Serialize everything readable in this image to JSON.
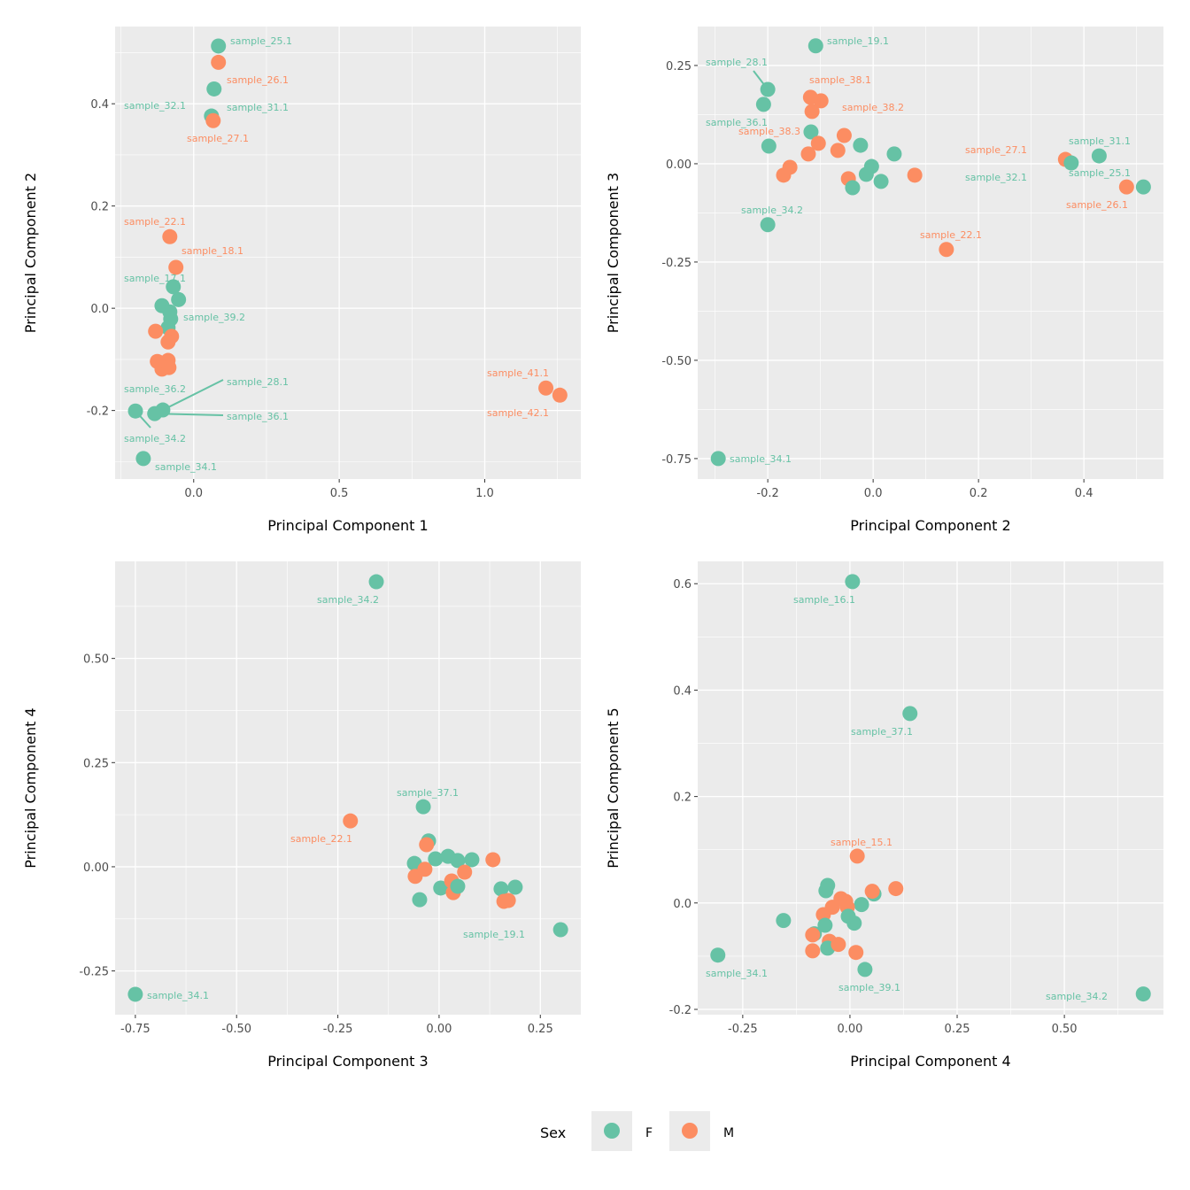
{
  "chart_data": [
    {
      "type": "scatter",
      "xlabel": "Principal Component 1",
      "ylabel": "Principal Component 2",
      "xlim": [
        -0.27,
        1.33
      ],
      "ylim": [
        -0.334,
        0.551
      ],
      "xticks": [
        0,
        0.5,
        1.0
      ],
      "xtick_labels": [
        "0.0",
        "0.5",
        "1.0"
      ],
      "yticks": [
        -0.2,
        0,
        0.2,
        0.4
      ],
      "ytick_labels": [
        "-0.2",
        "0.0",
        "0.2",
        "0.4"
      ],
      "points": [
        {
          "x": 0.085,
          "y": 0.513,
          "sex": "F",
          "label": "sample_25.1"
        },
        {
          "x": 0.085,
          "y": 0.481,
          "sex": "M",
          "label": "sample_26.1"
        },
        {
          "x": 0.07,
          "y": 0.429,
          "sex": "F",
          "label": "sample_31.1"
        },
        {
          "x": 0.061,
          "y": 0.376,
          "sex": "F",
          "label": "sample_32.1"
        },
        {
          "x": 0.067,
          "y": 0.367,
          "sex": "M",
          "label": "sample_27.1"
        },
        {
          "x": -0.082,
          "y": 0.14,
          "sex": "M",
          "label": "sample_22.1"
        },
        {
          "x": -0.061,
          "y": 0.08,
          "sex": "M",
          "label": "sample_18.1"
        },
        {
          "x": -0.07,
          "y": 0.042,
          "sex": "F",
          "label": "sample_17.1"
        },
        {
          "x": -0.052,
          "y": 0.017,
          "sex": "F"
        },
        {
          "x": -0.109,
          "y": 0.005,
          "sex": "F"
        },
        {
          "x": -0.082,
          "y": -0.007,
          "sex": "F"
        },
        {
          "x": -0.079,
          "y": -0.021,
          "sex": "F",
          "label": "sample_39.2"
        },
        {
          "x": -0.088,
          "y": -0.038,
          "sex": "F"
        },
        {
          "x": -0.131,
          "y": -0.045,
          "sex": "M"
        },
        {
          "x": -0.076,
          "y": -0.055,
          "sex": "M"
        },
        {
          "x": -0.088,
          "y": -0.066,
          "sex": "M"
        },
        {
          "x": -0.109,
          "y": -0.111,
          "sex": "F",
          "label": "sample_36.2"
        },
        {
          "x": -0.088,
          "y": -0.102,
          "sex": "M"
        },
        {
          "x": -0.125,
          "y": -0.104,
          "sex": "M"
        },
        {
          "x": -0.109,
          "y": -0.119,
          "sex": "M"
        },
        {
          "x": -0.085,
          "y": -0.116,
          "sex": "M"
        },
        {
          "x": -0.2,
          "y": -0.201,
          "sex": "F",
          "label": "sample_34.2"
        },
        {
          "x": -0.134,
          "y": -0.206,
          "sex": "F",
          "label": "sample_36.1"
        },
        {
          "x": -0.106,
          "y": -0.199,
          "sex": "F",
          "label": "sample_28.1"
        },
        {
          "x": -0.173,
          "y": -0.294,
          "sex": "F",
          "label": "sample_34.1"
        },
        {
          "x": 1.21,
          "y": -0.156,
          "sex": "M",
          "label": "sample_41.1"
        },
        {
          "x": 1.258,
          "y": -0.17,
          "sex": "M",
          "label": "sample_42.1"
        }
      ]
    },
    {
      "type": "scatter",
      "xlabel": "Principal Component 2",
      "ylabel": "Principal Component 3",
      "xlim": [
        -0.333,
        0.551
      ],
      "ylim": [
        -0.802,
        0.349
      ],
      "xticks": [
        -0.2,
        0,
        0.2,
        0.4
      ],
      "xtick_labels": [
        "-0.2",
        "0.0",
        "0.2",
        "0.4"
      ],
      "yticks": [
        -0.75,
        -0.5,
        -0.25,
        0,
        0.25
      ],
      "ytick_labels": [
        "-0.75",
        "-0.50",
        "-0.25",
        "0.00",
        "0.25"
      ],
      "points": [
        {
          "x": -0.109,
          "y": 0.3,
          "sex": "F",
          "label": "sample_19.1"
        },
        {
          "x": -0.2,
          "y": 0.189,
          "sex": "F",
          "label": "sample_28.1"
        },
        {
          "x": -0.208,
          "y": 0.151,
          "sex": "F"
        },
        {
          "x": -0.119,
          "y": 0.169,
          "sex": "M",
          "label": "sample_38.1"
        },
        {
          "x": -0.099,
          "y": 0.16,
          "sex": "M"
        },
        {
          "x": -0.116,
          "y": 0.133,
          "sex": "M",
          "label": "sample_38.2"
        },
        {
          "x": -0.118,
          "y": 0.081,
          "sex": "F"
        },
        {
          "x": -0.198,
          "y": 0.045,
          "sex": "F",
          "label": "sample_36.1"
        },
        {
          "x": -0.104,
          "y": 0.052,
          "sex": "M",
          "label": "sample_38.3"
        },
        {
          "x": -0.055,
          "y": 0.072,
          "sex": "M"
        },
        {
          "x": -0.067,
          "y": 0.034,
          "sex": "M"
        },
        {
          "x": -0.123,
          "y": 0.025,
          "sex": "M"
        },
        {
          "x": -0.158,
          "y": -0.009,
          "sex": "M"
        },
        {
          "x": -0.17,
          "y": -0.029,
          "sex": "M"
        },
        {
          "x": -0.024,
          "y": 0.047,
          "sex": "F"
        },
        {
          "x": 0.04,
          "y": 0.025,
          "sex": "F"
        },
        {
          "x": -0.003,
          "y": -0.007,
          "sex": "F"
        },
        {
          "x": -0.013,
          "y": -0.027,
          "sex": "F"
        },
        {
          "x": 0.015,
          "y": -0.045,
          "sex": "F"
        },
        {
          "x": -0.047,
          "y": -0.038,
          "sex": "M"
        },
        {
          "x": -0.039,
          "y": -0.061,
          "sex": "F"
        },
        {
          "x": 0.079,
          "y": -0.029,
          "sex": "M"
        },
        {
          "x": 0.365,
          "y": 0.011,
          "sex": "M",
          "label": "sample_27.1"
        },
        {
          "x": 0.376,
          "y": 0.002,
          "sex": "F",
          "label": "sample_32.1"
        },
        {
          "x": 0.429,
          "y": 0.02,
          "sex": "F",
          "label": "sample_31.1"
        },
        {
          "x": 0.481,
          "y": -0.059,
          "sex": "M",
          "label": "sample_26.1"
        },
        {
          "x": 0.513,
          "y": -0.059,
          "sex": "F",
          "label": "sample_25.1"
        },
        {
          "x": -0.2,
          "y": -0.155,
          "sex": "F",
          "label": "sample_34.2"
        },
        {
          "x": 0.139,
          "y": -0.218,
          "sex": "M",
          "label": "sample_22.1"
        },
        {
          "x": -0.294,
          "y": -0.75,
          "sex": "F",
          "label": "sample_34.1"
        }
      ]
    },
    {
      "type": "scatter",
      "xlabel": "Principal Component 3",
      "ylabel": "Principal Component 4",
      "xlim": [
        -0.8,
        0.35
      ],
      "ylim": [
        -0.355,
        0.733
      ],
      "xticks": [
        -0.75,
        -0.5,
        -0.25,
        0,
        0.25
      ],
      "xtick_labels": [
        "-0.75",
        "-0.50",
        "-0.25",
        "0.00",
        "0.25"
      ],
      "yticks": [
        -0.25,
        0,
        0.25,
        0.5
      ],
      "ytick_labels": [
        "-0.25",
        "0.00",
        "0.25",
        "0.50"
      ],
      "points": [
        {
          "x": -0.155,
          "y": 0.684,
          "sex": "F",
          "label": "sample_34.2"
        },
        {
          "x": -0.039,
          "y": 0.144,
          "sex": "F",
          "label": "sample_37.1"
        },
        {
          "x": -0.219,
          "y": 0.11,
          "sex": "M",
          "label": "sample_22.1"
        },
        {
          "x": -0.026,
          "y": 0.062,
          "sex": "F"
        },
        {
          "x": -0.031,
          "y": 0.053,
          "sex": "M"
        },
        {
          "x": -0.061,
          "y": 0.008,
          "sex": "F"
        },
        {
          "x": -0.035,
          "y": -0.006,
          "sex": "M"
        },
        {
          "x": -0.059,
          "y": -0.023,
          "sex": "M"
        },
        {
          "x": -0.009,
          "y": 0.019,
          "sex": "F"
        },
        {
          "x": 0.022,
          "y": 0.025,
          "sex": "F"
        },
        {
          "x": 0.046,
          "y": 0.015,
          "sex": "F"
        },
        {
          "x": 0.081,
          "y": 0.017,
          "sex": "F"
        },
        {
          "x": 0.133,
          "y": 0.017,
          "sex": "M"
        },
        {
          "x": 0.004,
          "y": -0.051,
          "sex": "F"
        },
        {
          "x": 0.031,
          "y": -0.034,
          "sex": "M"
        },
        {
          "x": 0.063,
          "y": -0.013,
          "sex": "M"
        },
        {
          "x": 0.035,
          "y": -0.062,
          "sex": "M"
        },
        {
          "x": 0.046,
          "y": -0.047,
          "sex": "F"
        },
        {
          "x": -0.048,
          "y": -0.079,
          "sex": "F"
        },
        {
          "x": 0.153,
          "y": -0.053,
          "sex": "F"
        },
        {
          "x": 0.188,
          "y": -0.049,
          "sex": "F"
        },
        {
          "x": 0.16,
          "y": -0.083,
          "sex": "M"
        },
        {
          "x": 0.171,
          "y": -0.081,
          "sex": "M"
        },
        {
          "x": 0.3,
          "y": -0.151,
          "sex": "F",
          "label": "sample_19.1"
        },
        {
          "x": -0.75,
          "y": -0.306,
          "sex": "F",
          "label": "sample_34.1"
        }
      ]
    },
    {
      "type": "scatter",
      "xlabel": "Principal Component 4",
      "ylabel": "Principal Component 5",
      "xlim": [
        -0.355,
        0.731
      ],
      "ylim": [
        -0.21,
        0.642
      ],
      "xticks": [
        -0.25,
        0,
        0.25,
        0.5
      ],
      "xtick_labels": [
        "-0.25",
        "0.00",
        "0.25",
        "0.50"
      ],
      "yticks": [
        -0.2,
        0,
        0.2,
        0.4,
        0.6
      ],
      "ytick_labels": [
        "-0.2",
        "0.0",
        "0.2",
        "0.4",
        "0.6"
      ],
      "points": [
        {
          "x": 0.006,
          "y": 0.604,
          "sex": "F",
          "label": "sample_16.1"
        },
        {
          "x": 0.14,
          "y": 0.356,
          "sex": "F",
          "label": "sample_37.1"
        },
        {
          "x": 0.017,
          "y": 0.088,
          "sex": "M",
          "label": "sample_15.1"
        },
        {
          "x": -0.052,
          "y": 0.033,
          "sex": "F"
        },
        {
          "x": -0.056,
          "y": 0.023,
          "sex": "F"
        },
        {
          "x": 0.107,
          "y": 0.027,
          "sex": "M"
        },
        {
          "x": 0.056,
          "y": 0.017,
          "sex": "F"
        },
        {
          "x": 0.052,
          "y": 0.022,
          "sex": "M"
        },
        {
          "x": 0.027,
          "y": -0.003,
          "sex": "F"
        },
        {
          "x": -0.021,
          "y": 0.008,
          "sex": "M"
        },
        {
          "x": -0.01,
          "y": 0.003,
          "sex": "M"
        },
        {
          "x": -0.041,
          "y": -0.008,
          "sex": "M"
        },
        {
          "x": -0.006,
          "y": -0.008,
          "sex": "M"
        },
        {
          "x": 0.01,
          "y": -0.038,
          "sex": "F"
        },
        {
          "x": -0.004,
          "y": -0.025,
          "sex": "F"
        },
        {
          "x": -0.062,
          "y": -0.022,
          "sex": "M"
        },
        {
          "x": -0.058,
          "y": -0.042,
          "sex": "F"
        },
        {
          "x": -0.083,
          "y": -0.058,
          "sex": "F"
        },
        {
          "x": -0.087,
          "y": -0.06,
          "sex": "M"
        },
        {
          "x": -0.048,
          "y": -0.072,
          "sex": "M"
        },
        {
          "x": -0.155,
          "y": -0.033,
          "sex": "F"
        },
        {
          "x": -0.052,
          "y": -0.085,
          "sex": "F"
        },
        {
          "x": -0.087,
          "y": -0.09,
          "sex": "M"
        },
        {
          "x": 0.014,
          "y": -0.093,
          "sex": "M"
        },
        {
          "x": -0.027,
          "y": -0.078,
          "sex": "M"
        },
        {
          "x": 0.035,
          "y": -0.125,
          "sex": "F",
          "label": "sample_39.1"
        },
        {
          "x": -0.308,
          "y": -0.098,
          "sex": "F",
          "label": "sample_34.1"
        },
        {
          "x": 0.684,
          "y": -0.171,
          "sex": "F",
          "label": "sample_34.2"
        }
      ]
    }
  ],
  "legend": {
    "title": "Sex",
    "position": "bottom",
    "items": [
      {
        "key": "F",
        "label": "F",
        "color": "#66c2a5"
      },
      {
        "key": "M",
        "label": "M",
        "color": "#fc8d62"
      }
    ]
  },
  "colors": {
    "F": "#66c2a5",
    "M": "#fc8d62",
    "panel_bg": "#ebebeb",
    "grid": "#ffffff"
  }
}
